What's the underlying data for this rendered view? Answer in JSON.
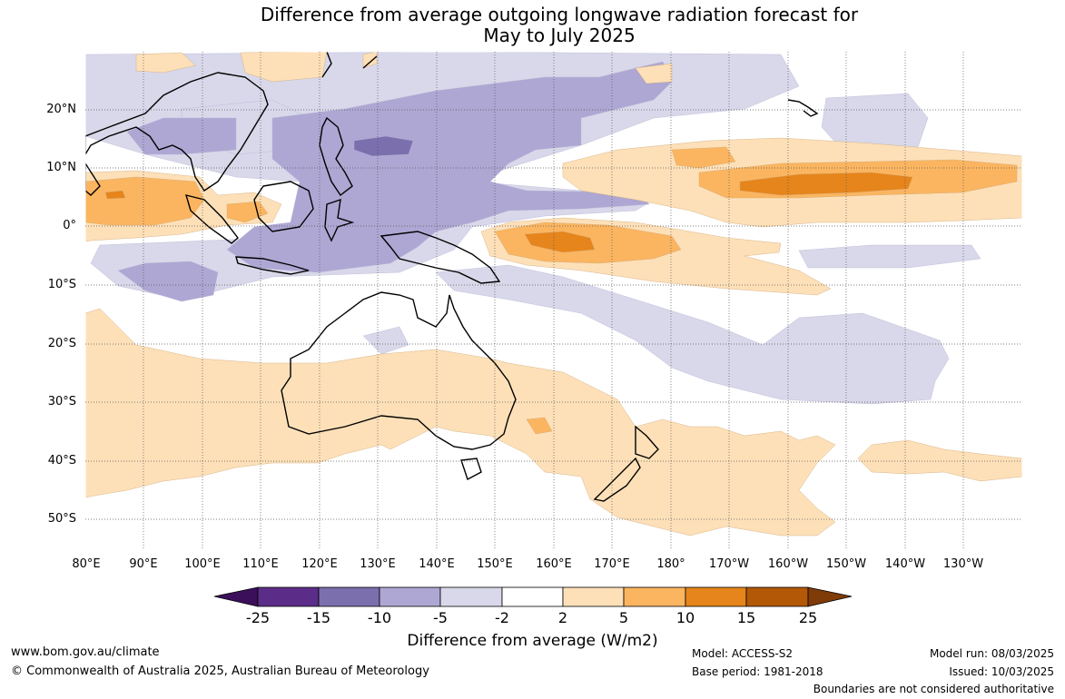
{
  "title": {
    "line1": "Difference from average outgoing longwave radiation forecast for",
    "line2": "May to July 2025"
  },
  "map": {
    "lat_labels": [
      "20°N",
      "10°N",
      "0°",
      "10°S",
      "20°S",
      "30°S",
      "40°S",
      "50°S"
    ],
    "lon_labels": [
      "80°E",
      "90°E",
      "100°E",
      "110°E",
      "120°E",
      "130°E",
      "140°E",
      "150°E",
      "160°E",
      "170°E",
      "180°",
      "170°W",
      "160°W",
      "150°W",
      "140°W",
      "130°W"
    ],
    "colors": {
      "neg15": "#5b2d88",
      "neg10": "#7b6fae",
      "neg5": "#aea7d3",
      "neg2": "#d8d8ea",
      "zero": "#ffffff",
      "pos2": "#fde0b8",
      "pos5": "#fbb560",
      "pos10": "#e6851b",
      "pos15": "#b35806",
      "pos25": "#7f3b08",
      "neg25": "#3c0f5a"
    }
  },
  "colorbar": {
    "labels": [
      "-25",
      "-15",
      "-10",
      "-5",
      "-2",
      "2",
      "5",
      "10",
      "15",
      "25"
    ],
    "title": "Difference from average (W/m2)"
  },
  "footer": {
    "website": "www.bom.gov.au/climate",
    "copyright": "© Commonwealth of Australia 2025, Australian Bureau of Meteorology",
    "model": "Model: ACCESS-S2",
    "base_period": "Base period: 1981-2018",
    "model_run": "Model run: 08/03/2025",
    "issued": "Issued: 10/03/2025",
    "disclaimer": "Boundaries are not considered authoritative"
  }
}
